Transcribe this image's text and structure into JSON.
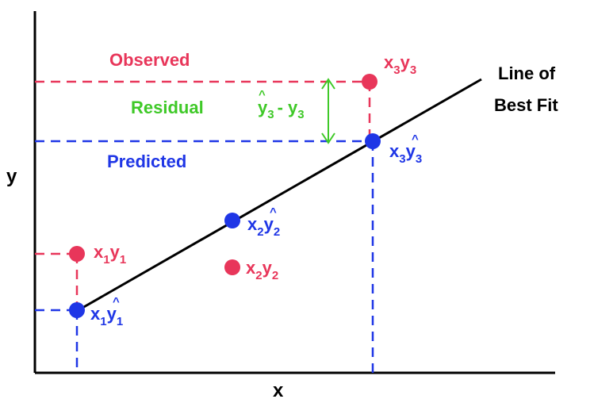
{
  "axes": {
    "x_label": "x",
    "y_label": "y"
  },
  "best_fit": {
    "line1": "Line of",
    "line2": "Best Fit"
  },
  "labels": {
    "observed": "Observed",
    "predicted": "Predicted",
    "residual": "Residual",
    "residual_formula": {
      "hat_y": "y",
      "hat": "^",
      "sub": "3",
      "op": "- ",
      "y": "y"
    }
  },
  "points": {
    "observed": [
      {
        "x": "x",
        "xs": "1",
        "y": "y",
        "ys": "1"
      },
      {
        "x": "x",
        "xs": "2",
        "y": "y",
        "ys": "2"
      },
      {
        "x": "x",
        "xs": "3",
        "y": "y",
        "ys": "3"
      }
    ],
    "predicted": [
      {
        "x": "x",
        "xs": "1",
        "y": "y",
        "ys": "1",
        "hat": "^"
      },
      {
        "x": "x",
        "xs": "2",
        "y": "y",
        "ys": "2",
        "hat": "^"
      },
      {
        "x": "x",
        "xs": "3",
        "y": "y",
        "ys": "3",
        "hat": "^"
      }
    ]
  },
  "colors": {
    "observed": "#e8365a",
    "predicted": "#1f36e6",
    "residual": "#3fc928",
    "axis": "#000000"
  }
}
